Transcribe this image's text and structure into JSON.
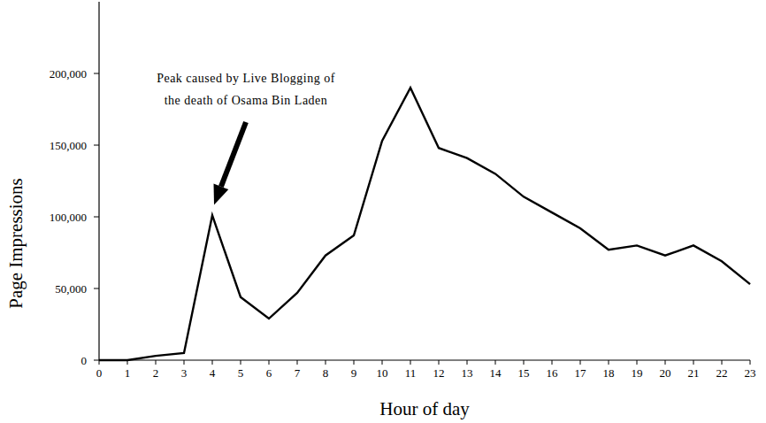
{
  "chart_data": {
    "type": "line",
    "x_label": "Hour of day",
    "y_label": "Page Impressions",
    "x": [
      0,
      1,
      2,
      3,
      4,
      5,
      6,
      7,
      8,
      9,
      10,
      11,
      12,
      13,
      14,
      15,
      16,
      17,
      18,
      19,
      20,
      21,
      22,
      23
    ],
    "values": [
      0,
      0,
      3000,
      5000,
      101000,
      44000,
      29000,
      47000,
      73000,
      87000,
      153000,
      190000,
      148000,
      141000,
      130000,
      114000,
      103000,
      92000,
      77000,
      80000,
      73000,
      80000,
      69000,
      53000
    ],
    "color": "#000000",
    "xlim": [
      0,
      23
    ],
    "xticks": [
      0,
      1,
      2,
      3,
      4,
      5,
      6,
      7,
      8,
      9,
      10,
      11,
      12,
      13,
      14,
      15,
      16,
      17,
      18,
      19,
      20,
      21,
      22,
      23
    ],
    "ylim": [
      0,
      250000
    ],
    "yticks": [
      0,
      {
        "value": 50000,
        "label": "50,000"
      },
      {
        "value": 100000,
        "label": "100,000"
      },
      {
        "value": 150000,
        "label": "150,000"
      },
      {
        "value": 200000,
        "label": "200,000"
      }
    ],
    "grid": false,
    "annotation": {
      "lines": [
        "Peak caused by Live Blogging of",
        "the death of Osama Bin Laden"
      ],
      "x": 4,
      "y": 101000
    }
  }
}
